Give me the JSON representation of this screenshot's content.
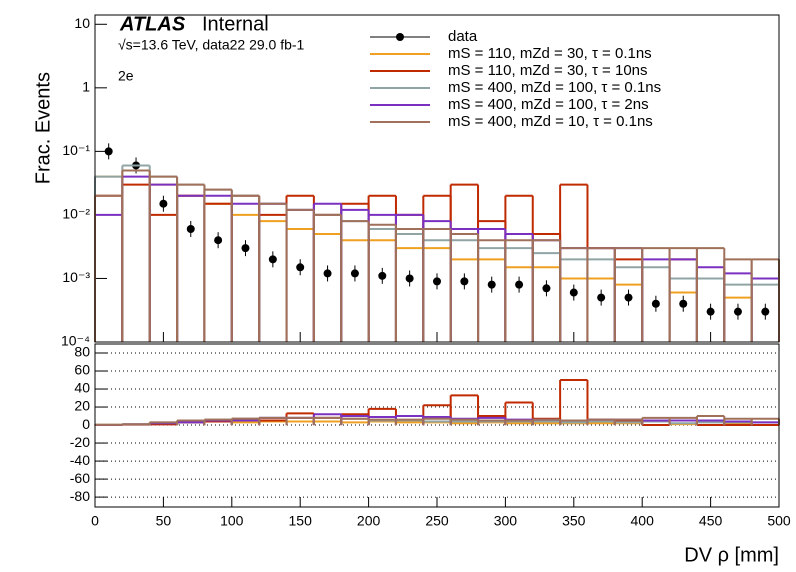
{
  "chart_data": [
    {
      "type": "histogram",
      "experiment": "ATLAS",
      "status": "Internal",
      "subtitle": "√s=13.6 TeV, data22 29.0 fb-1",
      "channel": "2e",
      "ylabel": "Frac. Events",
      "log_y": true,
      "xlim": [
        0,
        500
      ],
      "ylim": [
        0.0001,
        14
      ],
      "yticks": [
        {
          "value": 10,
          "label": "10"
        },
        {
          "value": 1,
          "label": "1"
        },
        {
          "value": 0.1,
          "label": "10⁻¹"
        },
        {
          "value": 0.01,
          "label": "10⁻²"
        },
        {
          "value": 0.001,
          "label": "10⁻³"
        },
        {
          "value": 0.0001,
          "label": "10⁻⁴"
        }
      ],
      "bins": [
        0,
        20,
        40,
        60,
        80,
        100,
        120,
        140,
        160,
        180,
        200,
        220,
        240,
        260,
        280,
        300,
        320,
        340,
        360,
        380,
        400,
        420,
        440,
        460,
        480,
        500
      ],
      "series": [
        {
          "name": "data",
          "color": "#000000",
          "style": "points",
          "values": [
            0.1,
            0.06,
            0.015,
            0.006,
            0.004,
            0.003,
            0.002,
            0.0015,
            0.0012,
            0.0012,
            0.0011,
            0.001,
            0.0009,
            0.0009,
            0.0008,
            0.0008,
            0.0007,
            0.0006,
            0.0005,
            0.0005,
            0.0004,
            0.0004,
            0.0003,
            0.0003,
            0.0003
          ]
        },
        {
          "name": "mS = 110, mZd = 30, τ = 0.1ns",
          "color": "#f0a020",
          "values": [
            0.04,
            0.05,
            0.03,
            0.02,
            0.015,
            0.01,
            0.008,
            0.006,
            0.005,
            0.004,
            0.004,
            0.003,
            0.003,
            0.002,
            0.002,
            0.0015,
            0.0015,
            0.001,
            0.001,
            0.0008,
            null,
            0.0006,
            null,
            0.0005,
            null
          ]
        },
        {
          "name": "mS = 110, mZd = 30, τ = 10ns",
          "color": "#c02a00",
          "values": [
            0.02,
            0.03,
            0.01,
            0.02,
            0.015,
            0.02,
            0.01,
            0.02,
            0.01,
            0.015,
            0.02,
            0.01,
            0.02,
            0.03,
            0.008,
            0.02,
            0.005,
            0.03,
            0.003,
            0.002,
            null,
            0.002,
            null,
            null,
            null
          ]
        },
        {
          "name": "mS = 400, mZd = 100, τ = 0.1ns",
          "color": "#90a4a4",
          "values": [
            0.04,
            0.06,
            0.04,
            0.03,
            0.025,
            0.02,
            0.015,
            0.012,
            0.01,
            0.008,
            0.006,
            0.005,
            0.004,
            0.004,
            0.003,
            0.003,
            0.0025,
            0.002,
            0.002,
            0.0015,
            0.0015,
            0.001,
            0.001,
            0.0008,
            0.0008
          ]
        },
        {
          "name": "mS = 400, mZd = 100, τ = 2ns",
          "color": "#7a30c0",
          "values": [
            0.01,
            0.04,
            0.03,
            0.02,
            0.02,
            0.015,
            0.015,
            0.012,
            0.015,
            0.012,
            0.01,
            0.01,
            0.008,
            0.006,
            0.006,
            0.005,
            0.004,
            0.003,
            0.003,
            0.003,
            0.002,
            0.002,
            0.0015,
            0.0012,
            0.001
          ]
        },
        {
          "name": "mS = 400, mZd = 10, τ = 0.1ns",
          "color": "#a0705a",
          "values": [
            0.02,
            0.05,
            0.04,
            0.03,
            0.025,
            0.02,
            0.015,
            0.012,
            0.01,
            0.008,
            0.007,
            0.006,
            0.006,
            0.005,
            0.004,
            0.004,
            0.004,
            0.003,
            0.003,
            0.003,
            0.003,
            0.003,
            0.003,
            0.002,
            0.002
          ]
        }
      ]
    },
    {
      "type": "histogram",
      "xlabel": "DV ρ [mm]",
      "xlim": [
        0,
        500
      ],
      "xticks": [
        0,
        50,
        100,
        150,
        200,
        250,
        300,
        350,
        400,
        450,
        500
      ],
      "ylim": [
        -91,
        90
      ],
      "yticks": [
        -80,
        -60,
        -40,
        -20,
        0,
        20,
        40,
        60,
        80
      ],
      "grid": true,
      "bins": [
        0,
        20,
        40,
        60,
        80,
        100,
        120,
        140,
        160,
        180,
        200,
        220,
        240,
        260,
        280,
        300,
        320,
        340,
        360,
        380,
        400,
        420,
        440,
        460,
        480,
        500
      ],
      "series": [
        {
          "color": "#f0a020",
          "values": [
            0.4,
            0.8,
            2,
            3,
            4,
            3,
            4,
            4,
            4,
            3,
            4,
            3,
            3,
            2,
            3,
            2,
            2,
            2,
            2,
            2,
            0,
            1,
            0,
            2,
            0
          ]
        },
        {
          "color": "#c02a00",
          "values": [
            0.2,
            0.5,
            0.7,
            3,
            4,
            7,
            5,
            13,
            8,
            12,
            18,
            10,
            22,
            33,
            10,
            25,
            7,
            50,
            6,
            4,
            0,
            5,
            0,
            0,
            0
          ]
        },
        {
          "color": "#90a4a4",
          "values": [
            0.4,
            1,
            3,
            5,
            6,
            7,
            8,
            8,
            8,
            7,
            5,
            5,
            4,
            4,
            4,
            4,
            4,
            3,
            4,
            3,
            4,
            2,
            3,
            3,
            3
          ]
        },
        {
          "color": "#7a30c0",
          "values": [
            0.1,
            0.7,
            2,
            3,
            5,
            5,
            8,
            8,
            12,
            10,
            9,
            10,
            9,
            7,
            8,
            6,
            6,
            5,
            6,
            6,
            5,
            5,
            5,
            4,
            3
          ]
        },
        {
          "color": "#a0705a",
          "values": [
            0.2,
            0.8,
            3,
            5,
            6,
            7,
            8,
            8,
            8,
            7,
            6,
            6,
            7,
            6,
            5,
            5,
            6,
            5,
            6,
            6,
            8,
            8,
            10,
            7,
            7
          ]
        }
      ]
    }
  ]
}
